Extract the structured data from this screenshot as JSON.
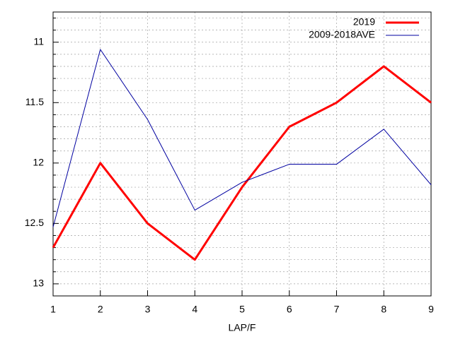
{
  "chart_data": {
    "type": "line",
    "x": [
      1,
      2,
      3,
      4,
      5,
      6,
      7,
      8,
      9
    ],
    "xlabel": "LAP/F",
    "xlim": [
      1,
      9
    ],
    "xticks": [
      1,
      2,
      3,
      4,
      5,
      6,
      7,
      8,
      9
    ],
    "ylim": [
      13.1,
      10.75
    ],
    "yticks": [
      11,
      11.5,
      12,
      12.5,
      13
    ],
    "yminorticks": [
      10.8,
      10.9,
      11.1,
      11.2,
      11.3,
      11.4,
      11.6,
      11.7,
      11.8,
      11.9,
      12.1,
      12.2,
      12.3,
      12.4,
      12.6,
      12.7,
      12.8,
      12.9,
      13.1
    ],
    "grid": true,
    "legend": "top-right",
    "series": [
      {
        "name": "2019",
        "color": "#ff0000",
        "width": 3,
        "values": [
          12.7,
          12.0,
          12.5,
          12.8,
          12.2,
          11.7,
          11.5,
          11.2,
          11.5
        ]
      },
      {
        "name": "2009-2018AVE",
        "color": "#0000a0",
        "width": 1,
        "values": [
          12.53,
          11.06,
          11.64,
          12.39,
          12.16,
          12.01,
          12.01,
          11.72,
          12.18
        ]
      }
    ]
  }
}
